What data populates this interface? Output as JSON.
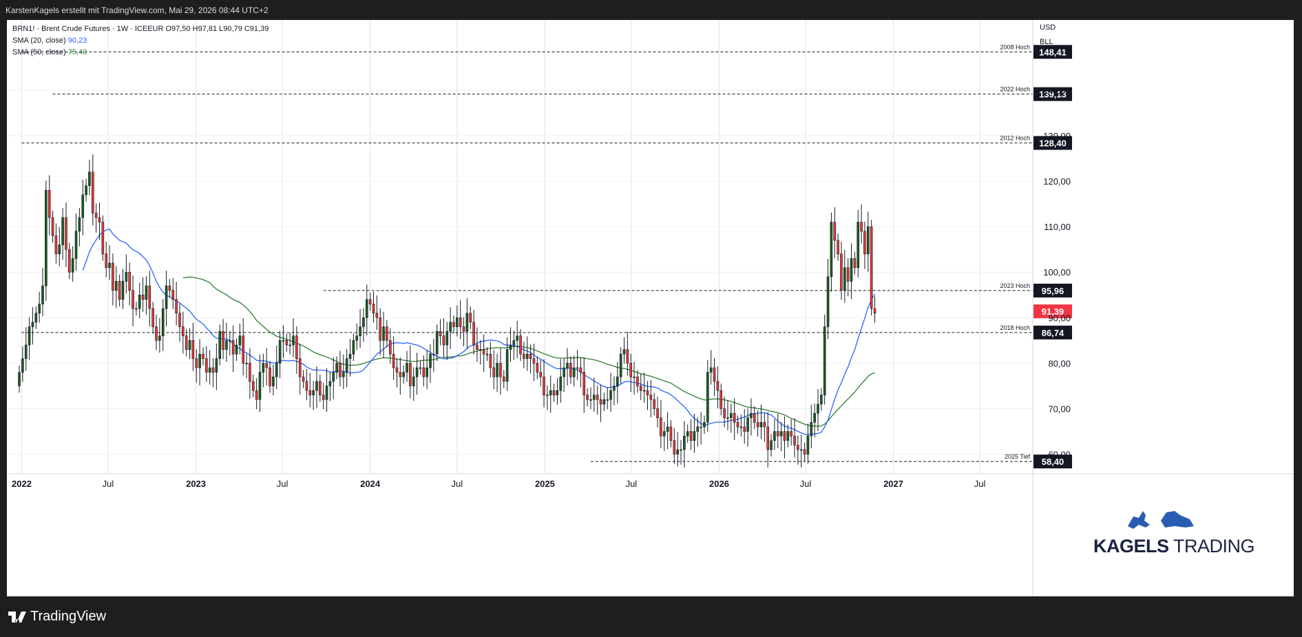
{
  "header": {
    "attribution": "KarstenKagels erstellt mit TradingView.com, Mai 29, 2026 08:44 UTC+2"
  },
  "legend": {
    "symbol_line": "BRN1! · Brent Crude Futures · 1W · ICEEUR  O97,50  H97,81  L90,79  C91,39",
    "sma20_label": "SMA (20, close)",
    "sma20_value": "90,23",
    "sma50_label": "SMA (50, close)",
    "sma50_value": "75,40"
  },
  "axis_top": {
    "currency": "USD",
    "unit": "BLL"
  },
  "footer": {
    "brand": "TradingView"
  },
  "logo": {
    "text_bold": "KAGELS",
    "text_regular": "TRADING"
  },
  "colors": {
    "up": "#1b5e20",
    "down": "#e53935",
    "sma20": "#2962ff",
    "sma50": "#2e7d32",
    "last_price_bg": "#f23645",
    "level_bg": "#131722"
  },
  "chart_data": {
    "type": "candlestick",
    "title": "BRN1! · Brent Crude Futures · 1W · ICEEUR",
    "timeframe": "1W",
    "ylim": [
      56,
      153
    ],
    "y_ticks": [
      "60,00",
      "70,00",
      "80,00",
      "90,00",
      "100,00",
      "110,00",
      "120,00",
      "130,00",
      "140,00"
    ],
    "x_ticks": [
      "2022",
      "Jul",
      "2023",
      "Jul",
      "2024",
      "Jul",
      "2025",
      "Jul",
      "2026",
      "Jul",
      "2027",
      "Jul"
    ],
    "x_tick_dates": [
      "2022-01-01",
      "2022-07-01",
      "2023-01-01",
      "2023-07-01",
      "2024-01-01",
      "2024-07-01",
      "2025-01-01",
      "2025-07-01",
      "2026-01-01",
      "2026-07-01",
      "2027-01-01",
      "2027-07-01"
    ],
    "x_bold": [
      true,
      false,
      true,
      false,
      true,
      false,
      true,
      false,
      true,
      false,
      true,
      false
    ],
    "last_price": "91,39",
    "levels": [
      {
        "label": "2008 Hoch",
        "value": 148.41,
        "text": "148,41",
        "from": "2022-01-01"
      },
      {
        "label": "2022 Hoch",
        "value": 139.13,
        "text": "139,13",
        "from": "2022-03-07"
      },
      {
        "label": "2012 Hoch",
        "value": 128.4,
        "text": "128,40",
        "from": "2022-01-01"
      },
      {
        "label": "2023 Hoch",
        "value": 95.96,
        "text": "95,96",
        "from": "2023-09-25"
      },
      {
        "label": "2018 Hoch",
        "value": 86.74,
        "text": "86,74",
        "from": "2022-01-01"
      },
      {
        "label": "2025 Tief",
        "value": 58.4,
        "text": "58,40",
        "from": "2025-04-07"
      }
    ],
    "candles_note": "weekly closes, approximate",
    "candle_start": "2021-12-27",
    "closes": [
      78,
      81,
      84,
      88,
      89,
      91,
      93,
      97,
      118,
      112,
      108,
      104,
      106,
      112,
      105,
      100,
      103,
      109,
      112,
      117,
      119,
      122,
      113,
      112,
      111,
      104,
      101,
      102,
      96,
      98,
      94,
      98,
      100,
      96,
      92,
      92,
      95,
      94,
      97,
      92,
      88,
      85,
      86,
      92,
      97,
      96,
      94,
      91,
      88,
      86,
      83,
      85,
      81,
      79,
      82,
      81,
      78,
      79,
      78,
      81,
      87,
      83,
      85,
      85,
      82,
      84,
      86,
      80,
      80,
      76,
      74,
      72,
      78,
      80,
      79,
      75,
      77,
      80,
      85,
      85,
      84,
      84,
      86,
      81,
      77,
      76,
      74,
      73,
      74,
      76,
      73,
      72,
      75,
      76,
      78,
      80,
      77,
      78,
      81,
      82,
      85,
      86,
      88,
      90,
      94,
      93,
      91,
      90,
      85,
      88,
      85,
      82,
      79,
      78,
      77,
      78,
      80,
      75,
      77,
      79,
      79,
      77,
      79,
      82,
      82,
      87,
      86,
      84,
      87,
      89,
      88,
      90,
      88,
      87,
      91,
      89,
      84,
      83,
      83,
      82,
      82,
      79,
      77,
      80,
      77,
      76,
      83,
      84,
      85,
      86,
      82,
      81,
      82,
      81,
      80,
      78,
      77,
      73,
      73,
      74,
      73,
      74,
      77,
      79,
      80,
      77,
      79,
      79,
      78,
      73,
      72,
      72,
      73,
      72,
      71,
      72,
      72,
      74,
      75,
      77,
      82,
      83,
      80,
      77,
      77,
      75,
      74,
      74,
      73,
      72,
      70,
      68,
      64,
      65,
      66,
      63,
      60,
      61,
      61,
      64,
      65,
      63,
      65,
      66,
      66,
      67,
      78,
      79,
      76,
      74,
      70,
      68,
      68,
      69,
      67,
      66,
      66,
      65,
      68,
      69,
      67,
      66,
      67,
      66,
      61,
      63,
      65,
      64,
      65,
      63,
      65,
      64,
      62,
      61,
      61,
      60,
      64,
      67,
      69,
      71,
      73,
      88,
      99,
      111,
      107,
      104,
      96,
      101,
      98,
      103,
      101,
      111,
      109,
      104,
      110,
      92,
      91
    ],
    "series": [
      {
        "name": "SMA (20, close)",
        "value": "90,23"
      },
      {
        "name": "SMA (50, close)",
        "value": "75,40"
      }
    ]
  }
}
